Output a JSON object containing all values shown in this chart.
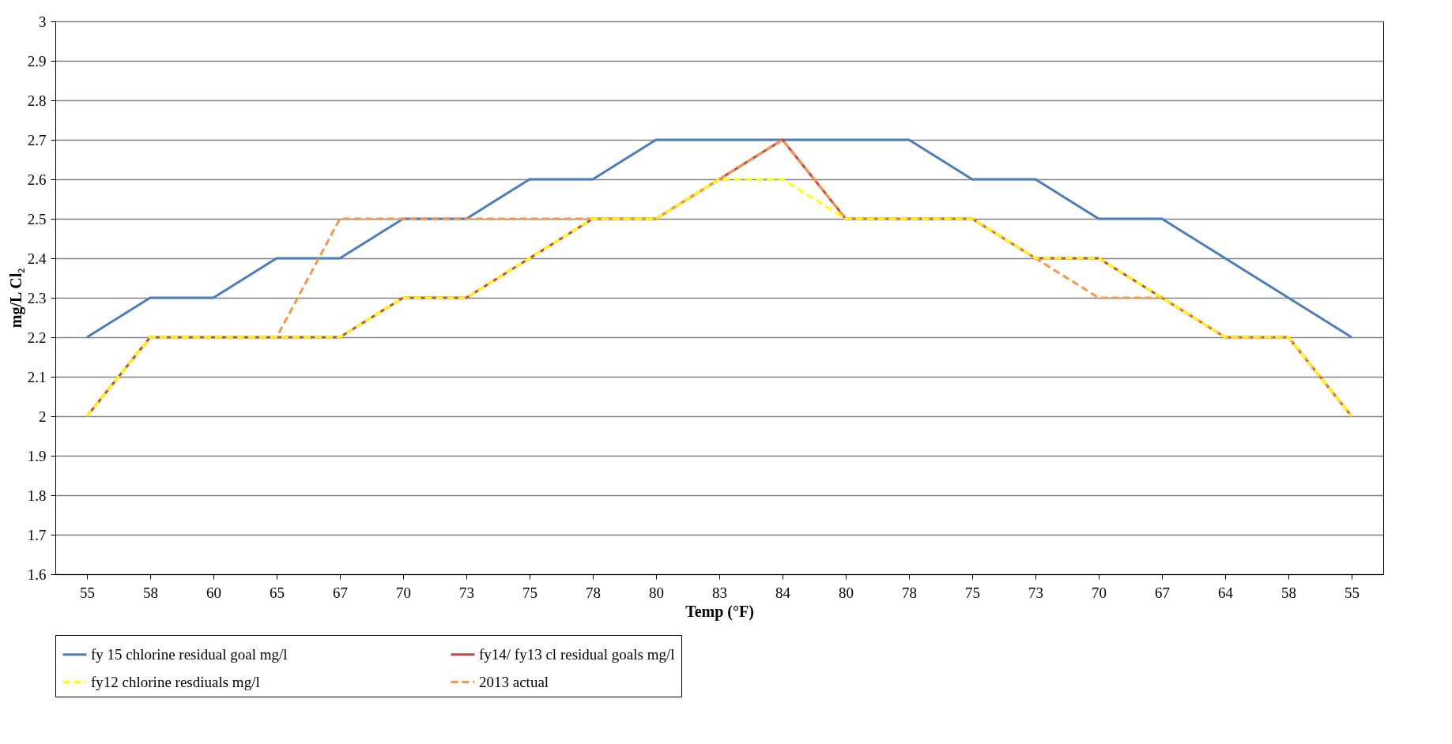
{
  "chart_data": {
    "type": "line",
    "xlabel": "Temp (°F)",
    "ylabel": "mg/L Cl₂",
    "categories": [
      "55",
      "58",
      "60",
      "65",
      "67",
      "70",
      "73",
      "75",
      "78",
      "80",
      "83",
      "84",
      "80",
      "78",
      "75",
      "73",
      "70",
      "67",
      "64",
      "58",
      "55"
    ],
    "ylim": [
      1.6,
      3
    ],
    "yticks": [
      1.6,
      1.7,
      1.8,
      1.9,
      2,
      2.1,
      2.2,
      2.3,
      2.4,
      2.5,
      2.6,
      2.7,
      2.8,
      2.9,
      3
    ],
    "grid": "y",
    "legend": "bottom",
    "series": [
      {
        "name": "fy 15 chlorine residual goal mg/l",
        "color": "#4a7ebb",
        "line_style": "solid",
        "values": [
          2.2,
          2.3,
          2.3,
          2.4,
          2.4,
          2.5,
          2.5,
          2.6,
          2.6,
          2.7,
          2.7,
          2.7,
          2.7,
          2.7,
          2.6,
          2.6,
          2.5,
          2.5,
          2.4,
          2.3,
          2.2
        ]
      },
      {
        "name": "fy14/ fy13 cl residual goals mg/l",
        "color": "#be4b48",
        "line_style": "solid",
        "values": [
          2.0,
          2.2,
          2.2,
          2.2,
          2.2,
          2.3,
          2.3,
          2.4,
          2.5,
          2.5,
          2.6,
          2.7,
          2.5,
          2.5,
          2.5,
          2.4,
          2.4,
          2.3,
          2.2,
          2.2,
          2.0
        ]
      },
      {
        "name": "fy12 chlorine resdiuals mg/l",
        "color": "#ffff00",
        "line_style": "dashed",
        "values": [
          2.0,
          2.2,
          2.2,
          2.2,
          2.2,
          2.3,
          2.3,
          2.4,
          2.5,
          2.5,
          2.6,
          2.6,
          2.5,
          2.5,
          2.5,
          2.4,
          2.4,
          2.3,
          2.2,
          2.2,
          2.0
        ]
      },
      {
        "name": "2013 actual",
        "color": "#f79646",
        "line_style": "dashed",
        "values": [
          2.0,
          2.2,
          2.2,
          2.2,
          2.5,
          2.5,
          2.5,
          2.5,
          2.5,
          2.5,
          2.6,
          2.7,
          2.5,
          2.5,
          2.5,
          2.4,
          2.3,
          2.3,
          2.2,
          2.2,
          2.0
        ]
      }
    ]
  }
}
